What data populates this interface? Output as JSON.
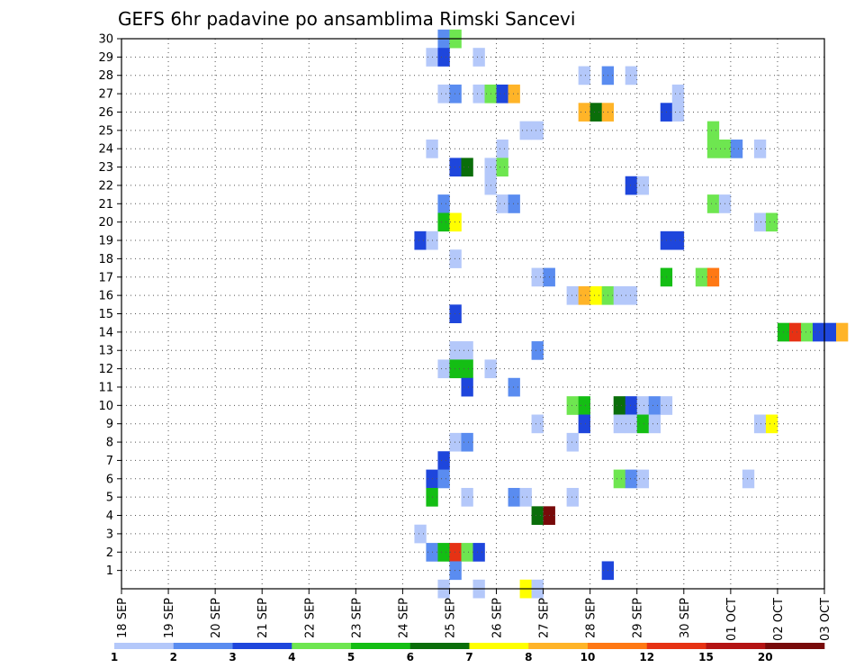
{
  "chart_data": {
    "type": "heatmap",
    "title": "GEFS 6hr padavine po ansamblima Rimski Sancevi",
    "x_tick_labels": [
      "18 SEP",
      "19 SEP",
      "20 SEP",
      "21 SEP",
      "22 SEP",
      "23 SEP",
      "24 SEP",
      "25 SEP",
      "26 SEP",
      "27 SEP",
      "28 SEP",
      "29 SEP",
      "30 SEP",
      "01 OCT",
      "02 OCT",
      "03 OCT"
    ],
    "y_tick_labels": [
      "1",
      "2",
      "3",
      "4",
      "5",
      "6",
      "7",
      "8",
      "9",
      "10",
      "11",
      "12",
      "13",
      "14",
      "15",
      "16",
      "17",
      "18",
      "19",
      "20",
      "21",
      "22",
      "23",
      "24",
      "25",
      "26",
      "27",
      "28",
      "29",
      "30"
    ],
    "y_range": [
      0,
      30
    ],
    "steps_per_day": 4,
    "grid": true,
    "colorbar": {
      "labels": [
        "1",
        "2",
        "3",
        "4",
        "5",
        "6",
        "7",
        "8",
        "10",
        "12",
        "15",
        "20"
      ],
      "colors": [
        "#b4c8fa",
        "#5a8cf0",
        "#1e46dc",
        "#6ee650",
        "#14be14",
        "#0a6e0a",
        "#ffff00",
        "#ffb428",
        "#ff7814",
        "#e63214",
        "#b41414",
        "#780a0a"
      ]
    },
    "cells": [
      {
        "x": "24 SEP 18",
        "m": 30,
        "v": 2
      },
      {
        "x": "25 SEP 00",
        "m": 30,
        "v": 4
      },
      {
        "x": "24 SEP 12",
        "m": 29,
        "v": 1
      },
      {
        "x": "24 SEP 18",
        "m": 29,
        "v": 3
      },
      {
        "x": "25 SEP 12",
        "m": 29,
        "v": 1
      },
      {
        "x": "27 SEP 18",
        "m": 28,
        "v": 1
      },
      {
        "x": "28 SEP 06",
        "m": 28,
        "v": 2
      },
      {
        "x": "28 SEP 18",
        "m": 28,
        "v": 1
      },
      {
        "x": "24 SEP 18",
        "m": 27,
        "v": 1
      },
      {
        "x": "25 SEP 00",
        "m": 27,
        "v": 2
      },
      {
        "x": "25 SEP 12",
        "m": 27,
        "v": 1
      },
      {
        "x": "25 SEP 18",
        "m": 27,
        "v": 4
      },
      {
        "x": "26 SEP 00",
        "m": 27,
        "v": 3
      },
      {
        "x": "26 SEP 06",
        "m": 27,
        "v": 8
      },
      {
        "x": "29 SEP 18",
        "m": 27,
        "v": 1
      },
      {
        "x": "27 SEP 18",
        "m": 26,
        "v": 8
      },
      {
        "x": "28 SEP 00",
        "m": 26,
        "v": 6
      },
      {
        "x": "28 SEP 06",
        "m": 26,
        "v": 8
      },
      {
        "x": "29 SEP 12",
        "m": 26,
        "v": 3
      },
      {
        "x": "29 SEP 18",
        "m": 26,
        "v": 1
      },
      {
        "x": "26 SEP 12",
        "m": 25,
        "v": 1
      },
      {
        "x": "26 SEP 18",
        "m": 25,
        "v": 1
      },
      {
        "x": "30 SEP 12",
        "m": 25,
        "v": 4
      },
      {
        "x": "24 SEP 12",
        "m": 24,
        "v": 1
      },
      {
        "x": "26 SEP 00",
        "m": 24,
        "v": 1
      },
      {
        "x": "30 SEP 12",
        "m": 24,
        "v": 4
      },
      {
        "x": "30 SEP 18",
        "m": 24,
        "v": 4
      },
      {
        "x": "01 OCT 00",
        "m": 24,
        "v": 2
      },
      {
        "x": "01 OCT 12",
        "m": 24,
        "v": 1
      },
      {
        "x": "25 SEP 00",
        "m": 23,
        "v": 3
      },
      {
        "x": "25 SEP 06",
        "m": 23,
        "v": 6
      },
      {
        "x": "25 SEP 18",
        "m": 23,
        "v": 1
      },
      {
        "x": "26 SEP 00",
        "m": 23,
        "v": 4
      },
      {
        "x": "25 SEP 18",
        "m": 22,
        "v": 1
      },
      {
        "x": "28 SEP 18",
        "m": 22,
        "v": 3
      },
      {
        "x": "29 SEP 00",
        "m": 22,
        "v": 1
      },
      {
        "x": "24 SEP 18",
        "m": 21,
        "v": 2
      },
      {
        "x": "26 SEP 00",
        "m": 21,
        "v": 1
      },
      {
        "x": "26 SEP 06",
        "m": 21,
        "v": 2
      },
      {
        "x": "30 SEP 12",
        "m": 21,
        "v": 4
      },
      {
        "x": "30 SEP 18",
        "m": 21,
        "v": 1
      },
      {
        "x": "24 SEP 18",
        "m": 20,
        "v": 5
      },
      {
        "x": "25 SEP 00",
        "m": 20,
        "v": 7
      },
      {
        "x": "01 OCT 12",
        "m": 20,
        "v": 1
      },
      {
        "x": "01 OCT 18",
        "m": 20,
        "v": 4
      },
      {
        "x": "24 SEP 06",
        "m": 19,
        "v": 3
      },
      {
        "x": "24 SEP 12",
        "m": 19,
        "v": 1
      },
      {
        "x": "29 SEP 12",
        "m": 19,
        "v": 3
      },
      {
        "x": "29 SEP 18",
        "m": 19,
        "v": 3
      },
      {
        "x": "25 SEP 00",
        "m": 18,
        "v": 1
      },
      {
        "x": "26 SEP 18",
        "m": 17,
        "v": 1
      },
      {
        "x": "27 SEP 00",
        "m": 17,
        "v": 2
      },
      {
        "x": "29 SEP 12",
        "m": 17,
        "v": 5
      },
      {
        "x": "30 SEP 06",
        "m": 17,
        "v": 4
      },
      {
        "x": "30 SEP 12",
        "m": 17,
        "v": 10
      },
      {
        "x": "27 SEP 12",
        "m": 16,
        "v": 1
      },
      {
        "x": "27 SEP 18",
        "m": 16,
        "v": 8
      },
      {
        "x": "28 SEP 00",
        "m": 16,
        "v": 7
      },
      {
        "x": "28 SEP 06",
        "m": 16,
        "v": 4
      },
      {
        "x": "28 SEP 12",
        "m": 16,
        "v": 1
      },
      {
        "x": "28 SEP 18",
        "m": 16,
        "v": 1
      },
      {
        "x": "25 SEP 00",
        "m": 15,
        "v": 3
      },
      {
        "x": "02 OCT 00",
        "m": 14,
        "v": 5
      },
      {
        "x": "02 OCT 06",
        "m": 14,
        "v": 12
      },
      {
        "x": "02 OCT 12",
        "m": 14,
        "v": 4
      },
      {
        "x": "02 OCT 18",
        "m": 14,
        "v": 3
      },
      {
        "x": "03 OCT 00",
        "m": 14,
        "v": 3
      },
      {
        "x": "03 OCT 06",
        "m": 14,
        "v": 8
      },
      {
        "x": "25 SEP 00",
        "m": 13,
        "v": 1
      },
      {
        "x": "25 SEP 06",
        "m": 13,
        "v": 1
      },
      {
        "x": "26 SEP 18",
        "m": 13,
        "v": 2
      },
      {
        "x": "24 SEP 18",
        "m": 12,
        "v": 1
      },
      {
        "x": "25 SEP 00",
        "m": 12,
        "v": 5
      },
      {
        "x": "25 SEP 06",
        "m": 12,
        "v": 5
      },
      {
        "x": "25 SEP 18",
        "m": 12,
        "v": 1
      },
      {
        "x": "25 SEP 06",
        "m": 11,
        "v": 3
      },
      {
        "x": "26 SEP 06",
        "m": 11,
        "v": 2
      },
      {
        "x": "27 SEP 12",
        "m": 10,
        "v": 4
      },
      {
        "x": "27 SEP 18",
        "m": 10,
        "v": 5
      },
      {
        "x": "28 SEP 12",
        "m": 10,
        "v": 6
      },
      {
        "x": "28 SEP 18",
        "m": 10,
        "v": 3
      },
      {
        "x": "29 SEP 00",
        "m": 10,
        "v": 1
      },
      {
        "x": "29 SEP 06",
        "m": 10,
        "v": 2
      },
      {
        "x": "29 SEP 12",
        "m": 10,
        "v": 1
      },
      {
        "x": "26 SEP 18",
        "m": 9,
        "v": 1
      },
      {
        "x": "27 SEP 18",
        "m": 9,
        "v": 3
      },
      {
        "x": "28 SEP 12",
        "m": 9,
        "v": 1
      },
      {
        "x": "28 SEP 18",
        "m": 9,
        "v": 1
      },
      {
        "x": "29 SEP 00",
        "m": 9,
        "v": 5
      },
      {
        "x": "29 SEP 06",
        "m": 9,
        "v": 1
      },
      {
        "x": "01 OCT 12",
        "m": 9,
        "v": 1
      },
      {
        "x": "01 OCT 18",
        "m": 9,
        "v": 7
      },
      {
        "x": "25 SEP 00",
        "m": 8,
        "v": 1
      },
      {
        "x": "25 SEP 06",
        "m": 8,
        "v": 2
      },
      {
        "x": "27 SEP 12",
        "m": 8,
        "v": 1
      },
      {
        "x": "24 SEP 18",
        "m": 7,
        "v": 3
      },
      {
        "x": "24 SEP 12",
        "m": 6,
        "v": 3
      },
      {
        "x": "24 SEP 18",
        "m": 6,
        "v": 2
      },
      {
        "x": "28 SEP 12",
        "m": 6,
        "v": 4
      },
      {
        "x": "28 SEP 18",
        "m": 6,
        "v": 2
      },
      {
        "x": "29 SEP 00",
        "m": 6,
        "v": 1
      },
      {
        "x": "01 OCT 06",
        "m": 6,
        "v": 1
      },
      {
        "x": "24 SEP 12",
        "m": 5,
        "v": 5
      },
      {
        "x": "25 SEP 06",
        "m": 5,
        "v": 1
      },
      {
        "x": "26 SEP 06",
        "m": 5,
        "v": 2
      },
      {
        "x": "26 SEP 12",
        "m": 5,
        "v": 1
      },
      {
        "x": "27 SEP 12",
        "m": 5,
        "v": 1
      },
      {
        "x": "26 SEP 18",
        "m": 4,
        "v": 6
      },
      {
        "x": "27 SEP 00",
        "m": 4,
        "v": 20
      },
      {
        "x": "24 SEP 06",
        "m": 3,
        "v": 1
      },
      {
        "x": "24 SEP 12",
        "m": 2,
        "v": 2
      },
      {
        "x": "24 SEP 18",
        "m": 2,
        "v": 5
      },
      {
        "x": "25 SEP 00",
        "m": 2,
        "v": 12
      },
      {
        "x": "25 SEP 06",
        "m": 2,
        "v": 4
      },
      {
        "x": "25 SEP 12",
        "m": 2,
        "v": 3
      },
      {
        "x": "25 SEP 00",
        "m": 1,
        "v": 2
      },
      {
        "x": "28 SEP 06",
        "m": 1,
        "v": 3
      },
      {
        "x": "24 SEP 18",
        "m": 0,
        "v": 1
      },
      {
        "x": "25 SEP 12",
        "m": 0,
        "v": 1
      },
      {
        "x": "26 SEP 12",
        "m": 0,
        "v": 7
      },
      {
        "x": "26 SEP 18",
        "m": 0,
        "v": 1
      }
    ]
  }
}
